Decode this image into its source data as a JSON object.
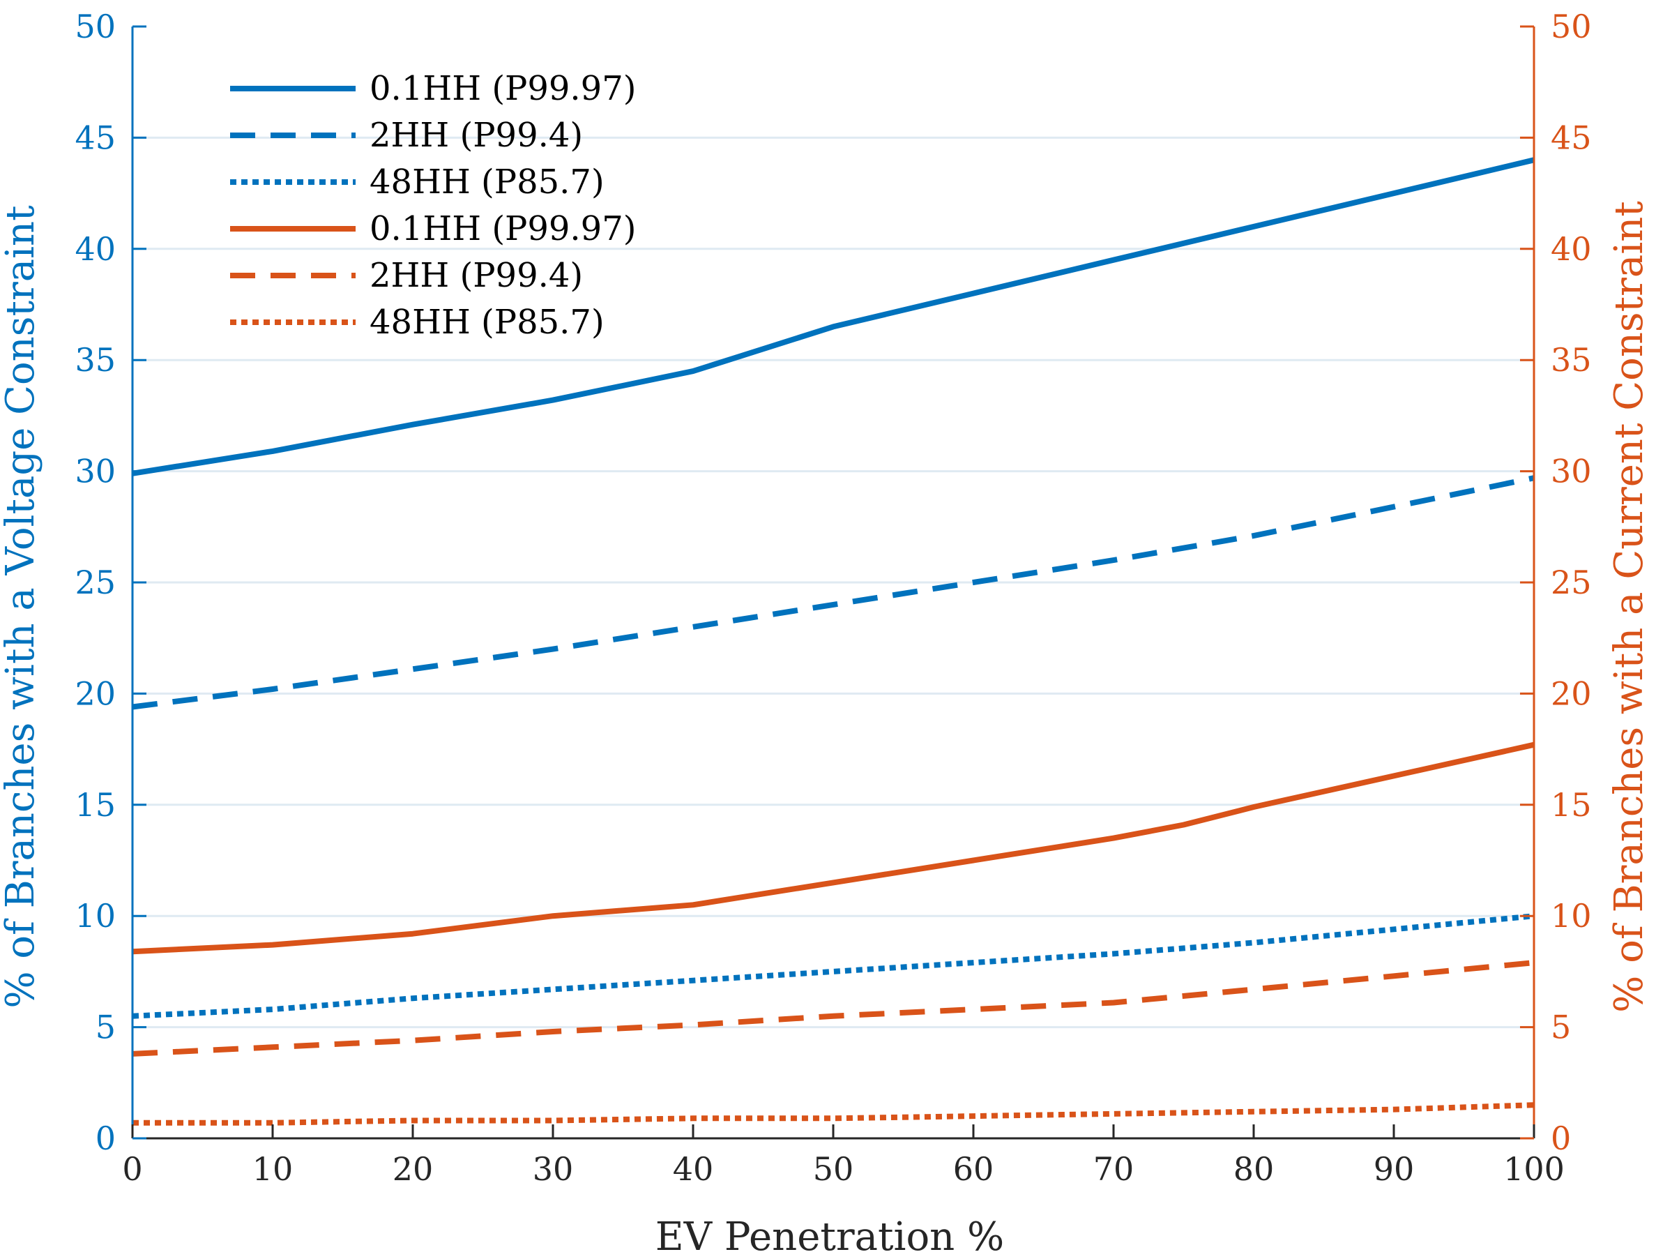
{
  "chart_data": {
    "type": "line",
    "xlabel": "EV Penetration %",
    "ylabel_left": "% of Branches with a Voltage Constraint",
    "ylabel_right": "% of Branches with a Current Constraint",
    "xlim": [
      0,
      100
    ],
    "ylim_left": [
      0,
      50
    ],
    "ylim_right": [
      0,
      50
    ],
    "x_ticks": [
      "0",
      "10",
      "20",
      "30",
      "40",
      "50",
      "60",
      "70",
      "80",
      "90",
      "100"
    ],
    "y_ticks_left": [
      "0",
      "5",
      "10",
      "15",
      "20",
      "25",
      "30",
      "35",
      "40",
      "45",
      "50"
    ],
    "y_ticks_right": [
      "0",
      "5",
      "10",
      "15",
      "20",
      "25",
      "30",
      "35",
      "40",
      "45",
      "50"
    ],
    "grid": "horizontal",
    "legend_position": "top-left",
    "colors": {
      "left_axis": "#0072BD",
      "right_axis": "#D95319"
    },
    "series": [
      {
        "name": "0.1HH (P99.97)",
        "axis": "left",
        "color": "#0072BD",
        "style": "solid",
        "x": [
          0,
          10,
          20,
          30,
          40,
          50,
          60,
          70,
          80,
          90,
          100
        ],
        "values": [
          29.9,
          30.9,
          32.1,
          33.2,
          34.5,
          36.5,
          38.0,
          39.5,
          41.0,
          42.5,
          44.0
        ]
      },
      {
        "name": "2HH (P99.4)",
        "axis": "left",
        "color": "#0072BD",
        "style": "dashed",
        "x": [
          0,
          10,
          20,
          30,
          40,
          50,
          60,
          70,
          80,
          90,
          100
        ],
        "values": [
          19.4,
          20.2,
          21.1,
          22.0,
          23.0,
          24.0,
          25.0,
          26.0,
          27.1,
          28.4,
          29.7
        ]
      },
      {
        "name": "48HH (P85.7)",
        "axis": "left",
        "color": "#0072BD",
        "style": "dotted",
        "x": [
          0,
          10,
          20,
          30,
          40,
          50,
          60,
          70,
          80,
          90,
          100
        ],
        "values": [
          5.5,
          5.8,
          6.3,
          6.7,
          7.1,
          7.5,
          7.9,
          8.3,
          8.8,
          9.4,
          10.0
        ]
      },
      {
        "name": "0.1HH (P99.97)",
        "axis": "right",
        "color": "#D95319",
        "style": "solid",
        "x": [
          0,
          10,
          20,
          30,
          40,
          50,
          60,
          70,
          75,
          80,
          90,
          100
        ],
        "values": [
          8.4,
          8.7,
          9.2,
          10.0,
          10.5,
          11.5,
          12.5,
          13.5,
          14.1,
          14.9,
          16.3,
          17.7
        ]
      },
      {
        "name": "2HH (P99.4)",
        "axis": "right",
        "color": "#D95319",
        "style": "dashed",
        "x": [
          0,
          10,
          20,
          30,
          40,
          50,
          60,
          70,
          80,
          90,
          100
        ],
        "values": [
          3.8,
          4.1,
          4.4,
          4.8,
          5.1,
          5.5,
          5.8,
          6.1,
          6.7,
          7.3,
          7.9
        ]
      },
      {
        "name": "48HH (P85.7)",
        "axis": "right",
        "color": "#D95319",
        "style": "dotted",
        "x": [
          0,
          10,
          20,
          30,
          40,
          50,
          60,
          70,
          80,
          90,
          100
        ],
        "values": [
          0.7,
          0.7,
          0.8,
          0.8,
          0.9,
          0.9,
          1.0,
          1.1,
          1.2,
          1.3,
          1.5
        ]
      }
    ]
  }
}
